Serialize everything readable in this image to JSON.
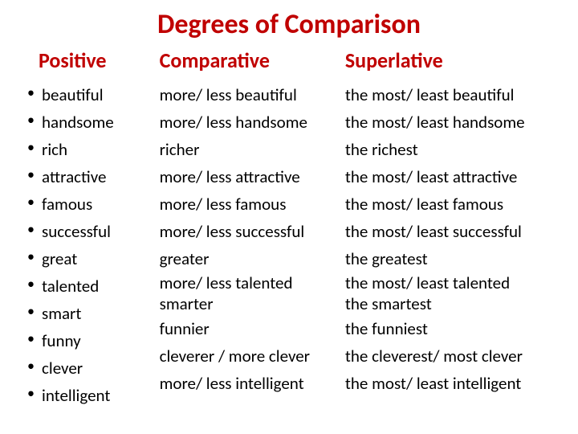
{
  "title": "Degrees of Comparison",
  "columns": {
    "positive": {
      "header": "Positive",
      "items": [
        "beautiful",
        "handsome",
        "rich",
        "attractive",
        "famous",
        "successful",
        "great",
        "talented",
        "smart",
        "funny",
        "clever",
        "intelligent"
      ]
    },
    "comparative": {
      "header": "Comparative",
      "items": [
        "more/ less beautiful",
        "more/ less handsome",
        "richer",
        "more/ less attractive",
        "more/ less famous",
        "more/ less successful",
        "greater",
        "more/ less talented",
        "smarter",
        "funnier",
        "cleverer / more clever",
        "more/ less intelligent"
      ]
    },
    "superlative": {
      "header": "Superlative",
      "items": [
        "the most/ least beautiful",
        "the most/ least handsome",
        "the richest",
        "the most/ least attractive",
        "the most/ least famous",
        "the most/ least successful",
        "the greatest",
        "the most/ least talented",
        "the smartest",
        "the funniest",
        "the cleverest/ most clever",
        "the most/ least intelligent"
      ]
    }
  },
  "colors": {
    "heading": "#c00000",
    "body_text": "#000000",
    "background": "#ffffff"
  },
  "typography": {
    "title_fontsize": 34,
    "header_fontsize": 26,
    "item_fontsize": 21,
    "font_family": "Calibri"
  }
}
